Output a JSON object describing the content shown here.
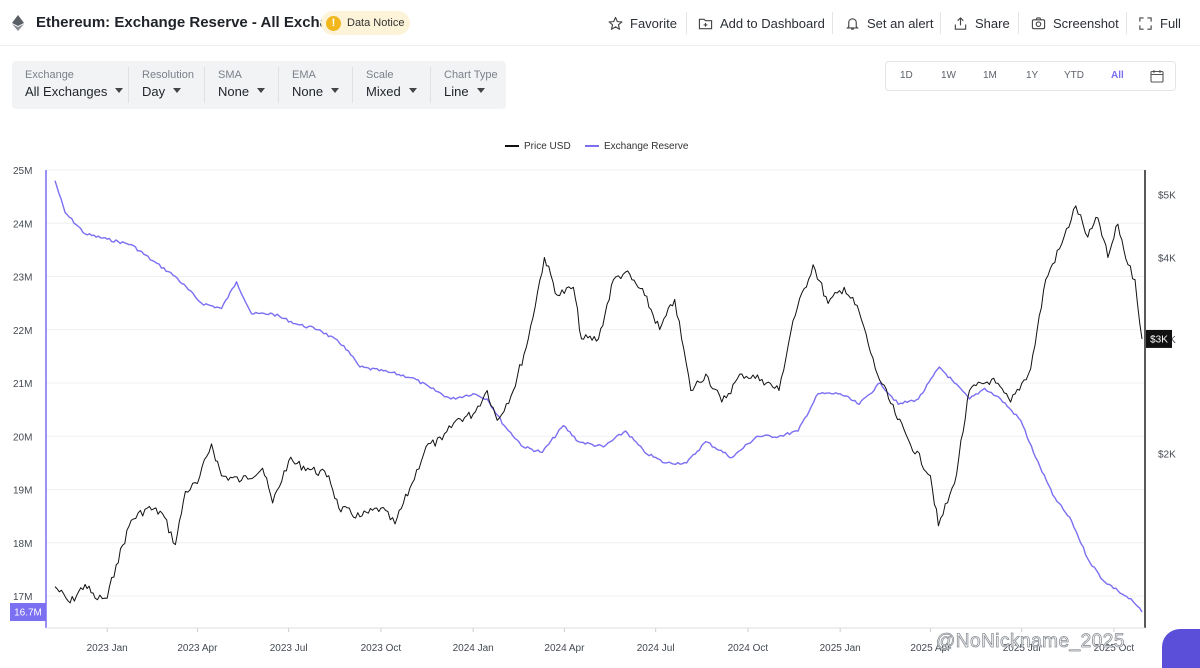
{
  "header": {
    "title": "Ethereum: Exchange Reserve - All Exchanges",
    "notice_icon": "!",
    "notice_label": "Data Notice",
    "actions": {
      "favorite": "Favorite",
      "dashboard": "Add to Dashboard",
      "alert": "Set an alert",
      "share": "Share",
      "screenshot": "Screenshot",
      "full": "Full"
    }
  },
  "toolbar": [
    {
      "label": "Exchange",
      "value": "All Exchanges"
    },
    {
      "label": "Resolution",
      "value": "Day"
    },
    {
      "label": "SMA",
      "value": "None"
    },
    {
      "label": "EMA",
      "value": "None"
    },
    {
      "label": "Scale",
      "value": "Mixed"
    },
    {
      "label": "Chart Type",
      "value": "Line"
    }
  ],
  "ranges": [
    "1D",
    "1W",
    "1M",
    "1Y",
    "YTD",
    "All"
  ],
  "active_range": "All",
  "watermark": "@NoNickname_2025",
  "colors": {
    "price": "#111111",
    "reserve": "#7b6ff2",
    "grid": "#eeeff1"
  },
  "chart_data": {
    "type": "line",
    "legend": [
      "Price USD",
      "Exchange Reserve"
    ],
    "legend_position": "top-center",
    "grid": "horizontal",
    "x_ticks": [
      "2023 Jan",
      "2023 Apr",
      "2023 Jul",
      "2023 Oct",
      "2024 Jan",
      "2024 Apr",
      "2024 Jul",
      "2024 Oct",
      "2025 Jan",
      "2025 Apr",
      "2025 Jul",
      "2025 Oct"
    ],
    "y_left_ticks": [
      "25M",
      "24M",
      "23M",
      "22M",
      "21M",
      "20M",
      "19M",
      "18M",
      "17M"
    ],
    "y_right_ticks": [
      "$5K",
      "$4K",
      "$3K",
      "$2K"
    ],
    "y_left_range": [
      16.4,
      25
    ],
    "left_marker": "16.7M",
    "right_marker": "$3K",
    "series": [
      {
        "name": "Exchange Reserve",
        "unit": "M",
        "axis": "left",
        "points": [
          [
            "2022-11-10",
            24.8
          ],
          [
            "2022-11-20",
            24.2
          ],
          [
            "2022-12-10",
            23.8
          ],
          [
            "2023-01-01",
            23.7
          ],
          [
            "2023-01-25",
            23.6
          ],
          [
            "2023-02-15",
            23.3
          ],
          [
            "2023-03-10",
            23.0
          ],
          [
            "2023-04-05",
            22.5
          ],
          [
            "2023-04-25",
            22.4
          ],
          [
            "2023-05-10",
            22.9
          ],
          [
            "2023-05-25",
            22.3
          ],
          [
            "2023-06-15",
            22.3
          ],
          [
            "2023-07-10",
            22.1
          ],
          [
            "2023-08-01",
            22.0
          ],
          [
            "2023-08-25",
            21.7
          ],
          [
            "2023-09-10",
            21.3
          ],
          [
            "2023-10-10",
            21.2
          ],
          [
            "2023-11-01",
            21.1
          ],
          [
            "2023-11-20",
            20.9
          ],
          [
            "2023-12-10",
            20.7
          ],
          [
            "2024-01-01",
            20.8
          ],
          [
            "2024-01-15",
            20.7
          ],
          [
            "2024-02-01",
            20.2
          ],
          [
            "2024-02-20",
            19.8
          ],
          [
            "2024-03-10",
            19.7
          ],
          [
            "2024-03-31",
            20.2
          ],
          [
            "2024-04-15",
            19.9
          ],
          [
            "2024-05-10",
            19.8
          ],
          [
            "2024-06-01",
            20.1
          ],
          [
            "2024-06-20",
            19.7
          ],
          [
            "2024-07-10",
            19.5
          ],
          [
            "2024-08-01",
            19.5
          ],
          [
            "2024-08-20",
            19.9
          ],
          [
            "2024-09-15",
            19.6
          ],
          [
            "2024-10-10",
            20.0
          ],
          [
            "2024-11-01",
            20.0
          ],
          [
            "2024-11-20",
            20.1
          ],
          [
            "2024-12-10",
            20.8
          ],
          [
            "2025-01-01",
            20.8
          ],
          [
            "2025-01-20",
            20.6
          ],
          [
            "2025-02-10",
            21.0
          ],
          [
            "2025-02-28",
            20.6
          ],
          [
            "2025-03-20",
            20.7
          ],
          [
            "2025-04-10",
            21.3
          ],
          [
            "2025-04-25",
            21.0
          ],
          [
            "2025-05-10",
            20.7
          ],
          [
            "2025-05-25",
            20.9
          ],
          [
            "2025-06-10",
            20.7
          ],
          [
            "2025-06-30",
            20.3
          ],
          [
            "2025-07-15",
            19.6
          ],
          [
            "2025-08-01",
            18.9
          ],
          [
            "2025-08-20",
            18.4
          ],
          [
            "2025-09-05",
            17.7
          ],
          [
            "2025-09-20",
            17.3
          ],
          [
            "2025-10-05",
            17.1
          ],
          [
            "2025-10-20",
            16.9
          ],
          [
            "2025-10-29",
            16.7
          ]
        ]
      },
      {
        "name": "Price USD",
        "unit": "USD",
        "axis": "right",
        "points": [
          [
            "2022-11-10",
            1250
          ],
          [
            "2022-11-25",
            1180
          ],
          [
            "2022-12-10",
            1260
          ],
          [
            "2022-12-20",
            1200
          ],
          [
            "2023-01-01",
            1200
          ],
          [
            "2023-01-10",
            1350
          ],
          [
            "2023-01-25",
            1580
          ],
          [
            "2023-02-10",
            1650
          ],
          [
            "2023-02-25",
            1620
          ],
          [
            "2023-03-10",
            1450
          ],
          [
            "2023-03-20",
            1750
          ],
          [
            "2023-04-01",
            1800
          ],
          [
            "2023-04-15",
            2070
          ],
          [
            "2023-04-25",
            1850
          ],
          [
            "2023-05-15",
            1820
          ],
          [
            "2023-06-05",
            1900
          ],
          [
            "2023-06-15",
            1680
          ],
          [
            "2023-07-01",
            1950
          ],
          [
            "2023-07-20",
            1900
          ],
          [
            "2023-08-10",
            1850
          ],
          [
            "2023-08-20",
            1650
          ],
          [
            "2023-09-10",
            1600
          ],
          [
            "2023-10-01",
            1650
          ],
          [
            "2023-10-15",
            1560
          ],
          [
            "2023-11-01",
            1800
          ],
          [
            "2023-11-15",
            2050
          ],
          [
            "2023-12-01",
            2100
          ],
          [
            "2023-12-15",
            2250
          ],
          [
            "2024-01-01",
            2300
          ],
          [
            "2024-01-15",
            2500
          ],
          [
            "2024-01-25",
            2250
          ],
          [
            "2024-02-10",
            2500
          ],
          [
            "2024-02-25",
            3000
          ],
          [
            "2024-03-12",
            4000
          ],
          [
            "2024-03-25",
            3500
          ],
          [
            "2024-04-10",
            3600
          ],
          [
            "2024-04-18",
            3000
          ],
          [
            "2024-05-05",
            3000
          ],
          [
            "2024-05-20",
            3700
          ],
          [
            "2024-06-01",
            3800
          ],
          [
            "2024-06-20",
            3500
          ],
          [
            "2024-07-05",
            3100
          ],
          [
            "2024-07-20",
            3450
          ],
          [
            "2024-08-05",
            2500
          ],
          [
            "2024-08-20",
            2650
          ],
          [
            "2024-09-05",
            2400
          ],
          [
            "2024-09-25",
            2650
          ],
          [
            "2024-10-15",
            2600
          ],
          [
            "2024-11-01",
            2500
          ],
          [
            "2024-11-15",
            3200
          ],
          [
            "2024-12-05",
            3900
          ],
          [
            "2024-12-20",
            3400
          ],
          [
            "2025-01-05",
            3600
          ],
          [
            "2025-01-20",
            3300
          ],
          [
            "2025-02-05",
            2700
          ],
          [
            "2025-02-25",
            2300
          ],
          [
            "2025-03-10",
            2100
          ],
          [
            "2025-04-01",
            1850
          ],
          [
            "2025-04-09",
            1550
          ],
          [
            "2025-04-25",
            1800
          ],
          [
            "2025-05-10",
            2500
          ],
          [
            "2025-06-01",
            2600
          ],
          [
            "2025-06-20",
            2400
          ],
          [
            "2025-07-10",
            2700
          ],
          [
            "2025-07-25",
            3700
          ],
          [
            "2025-08-10",
            4200
          ],
          [
            "2025-08-24",
            4800
          ],
          [
            "2025-09-05",
            4300
          ],
          [
            "2025-09-15",
            4600
          ],
          [
            "2025-09-25",
            4000
          ],
          [
            "2025-10-05",
            4500
          ],
          [
            "2025-10-15",
            3900
          ],
          [
            "2025-10-22",
            3700
          ],
          [
            "2025-10-29",
            3000
          ]
        ]
      }
    ]
  }
}
